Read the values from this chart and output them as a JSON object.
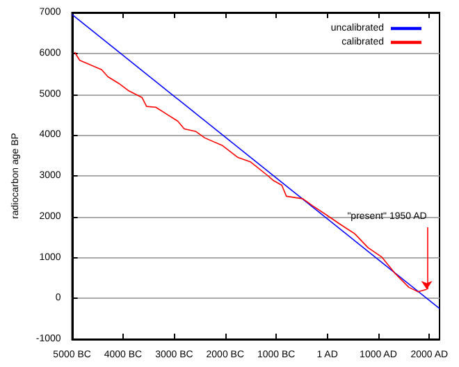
{
  "chart_data": {
    "type": "line",
    "ylabel": "radiocarbon age BP",
    "xlim": [
      -5000,
      2200
    ],
    "ylim": [
      -1000,
      7000
    ],
    "xticks": [
      {
        "value": -5000,
        "label": "5000 BC"
      },
      {
        "value": -4000,
        "label": "4000 BC"
      },
      {
        "value": -3000,
        "label": "3000 BC"
      },
      {
        "value": -2000,
        "label": "2000 BC"
      },
      {
        "value": -1000,
        "label": "1000 BC"
      },
      {
        "value": 1,
        "label": "1 AD"
      },
      {
        "value": 1000,
        "label": "1000 AD"
      },
      {
        "value": 2000,
        "label": "2000 AD"
      }
    ],
    "yticks": [
      -1000,
      0,
      1000,
      2000,
      3000,
      4000,
      5000,
      6000,
      7000
    ],
    "grid": "y",
    "legend": "top right",
    "marker": "none",
    "line_style": "solid",
    "series": [
      {
        "name": "uncalibrated",
        "color": "#0000ff",
        "x": [
          -5000,
          2200
        ],
        "values": [
          6950,
          -250
        ]
      },
      {
        "name": "calibrated",
        "color": "#ff0000",
        "x": [
          -4950,
          -4850,
          -4420,
          -4300,
          -4080,
          -3900,
          -3630,
          -3540,
          -3360,
          -3170,
          -2930,
          -2800,
          -2580,
          -2400,
          -2050,
          -1750,
          -1500,
          -1160,
          -1060,
          -890,
          -800,
          -480,
          -290,
          0,
          270,
          540,
          800,
          1070,
          1330,
          1600,
          1780,
          1950
        ],
        "values": [
          6030,
          5830,
          5600,
          5430,
          5260,
          5090,
          4920,
          4700,
          4680,
          4530,
          4340,
          4150,
          4090,
          3930,
          3740,
          3450,
          3340,
          3000,
          2890,
          2770,
          2500,
          2440,
          2270,
          2030,
          1800,
          1580,
          1240,
          1010,
          610,
          270,
          160,
          220
        ]
      }
    ],
    "annotations": [
      {
        "text": "\"present\" 1950 AD",
        "x": 1950,
        "y": 220
      }
    ]
  }
}
